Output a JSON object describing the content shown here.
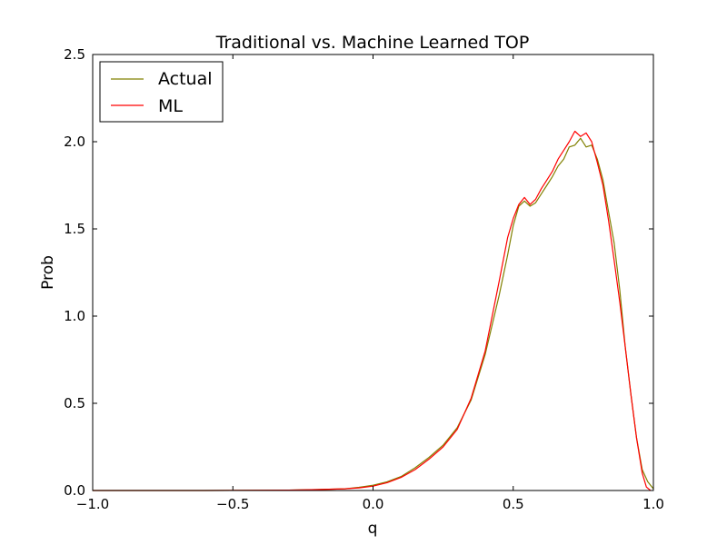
{
  "chart_data": {
    "type": "line",
    "title": "Traditional vs. Machine Learned TOP",
    "xlabel": "q",
    "ylabel": "Prob",
    "xlim": [
      -1.0,
      1.0
    ],
    "ylim": [
      0.0,
      2.5
    ],
    "xticks": [
      -1.0,
      -0.5,
      0.0,
      0.5,
      1.0
    ],
    "xtick_labels": [
      "−1.0",
      "−0.5",
      "0.0",
      "0.5",
      "1.0"
    ],
    "yticks": [
      0.0,
      0.5,
      1.0,
      1.5,
      2.0,
      2.5
    ],
    "ytick_labels": [
      "0.0",
      "0.5",
      "1.0",
      "1.5",
      "2.0",
      "2.5"
    ],
    "grid": false,
    "legend_position": "top-left",
    "series": [
      {
        "name": "Actual",
        "color": "#808000",
        "x": [
          -1.0,
          -0.6,
          -0.3,
          -0.2,
          -0.1,
          -0.05,
          0.0,
          0.05,
          0.1,
          0.15,
          0.2,
          0.25,
          0.3,
          0.35,
          0.4,
          0.45,
          0.48,
          0.5,
          0.52,
          0.54,
          0.56,
          0.58,
          0.6,
          0.62,
          0.64,
          0.66,
          0.68,
          0.7,
          0.72,
          0.74,
          0.76,
          0.78,
          0.8,
          0.82,
          0.84,
          0.86,
          0.88,
          0.9,
          0.92,
          0.94,
          0.96,
          0.98,
          1.0
        ],
        "y": [
          0.0,
          0.0,
          0.002,
          0.005,
          0.01,
          0.018,
          0.03,
          0.05,
          0.08,
          0.13,
          0.19,
          0.26,
          0.36,
          0.52,
          0.78,
          1.12,
          1.35,
          1.52,
          1.63,
          1.66,
          1.63,
          1.65,
          1.7,
          1.75,
          1.8,
          1.86,
          1.9,
          1.97,
          1.98,
          2.02,
          1.97,
          1.98,
          1.9,
          1.78,
          1.6,
          1.42,
          1.15,
          0.82,
          0.55,
          0.3,
          0.12,
          0.05,
          0.01
        ]
      },
      {
        "name": "ML",
        "color": "#ff0000",
        "x": [
          -1.0,
          -0.6,
          -0.3,
          -0.2,
          -0.1,
          -0.05,
          0.0,
          0.05,
          0.1,
          0.15,
          0.2,
          0.25,
          0.3,
          0.35,
          0.4,
          0.45,
          0.48,
          0.5,
          0.52,
          0.54,
          0.56,
          0.58,
          0.6,
          0.62,
          0.64,
          0.66,
          0.68,
          0.7,
          0.72,
          0.74,
          0.76,
          0.78,
          0.8,
          0.82,
          0.84,
          0.86,
          0.88,
          0.9,
          0.92,
          0.94,
          0.96,
          0.975,
          0.99
        ],
        "y": [
          0.0,
          0.0,
          0.002,
          0.005,
          0.01,
          0.015,
          0.025,
          0.045,
          0.075,
          0.12,
          0.18,
          0.25,
          0.35,
          0.53,
          0.8,
          1.2,
          1.45,
          1.56,
          1.64,
          1.68,
          1.64,
          1.67,
          1.73,
          1.78,
          1.83,
          1.9,
          1.95,
          2.0,
          2.06,
          2.03,
          2.05,
          2.0,
          1.88,
          1.75,
          1.55,
          1.32,
          1.08,
          0.82,
          0.55,
          0.3,
          0.1,
          0.02,
          0.0
        ]
      }
    ]
  }
}
